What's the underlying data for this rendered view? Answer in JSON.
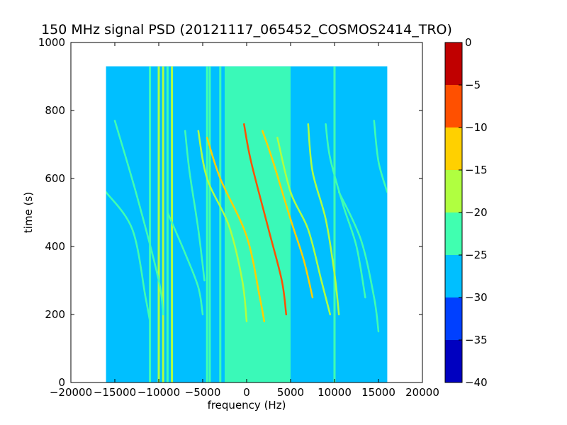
{
  "chart_data": {
    "type": "heatmap",
    "title": "150 MHz signal PSD (20121117_065452_COSMOS2414_TRO)",
    "xlabel": "frequency (Hz)",
    "ylabel": "time (s)",
    "xlim": [
      -20000,
      20000
    ],
    "ylim": [
      0,
      1000
    ],
    "x_ticks": [
      -20000,
      -15000,
      -10000,
      -5000,
      0,
      5000,
      10000,
      15000,
      20000
    ],
    "x_tick_labels": [
      "−20000",
      "−15000",
      "−10000",
      "−5000",
      "0",
      "5000",
      "10000",
      "15000",
      "20000"
    ],
    "y_ticks": [
      0,
      200,
      400,
      600,
      800,
      1000
    ],
    "y_tick_labels": [
      "0",
      "200",
      "400",
      "600",
      "800",
      "1000"
    ],
    "data_extent": {
      "x": [
        -16000,
        16000
      ],
      "y": [
        0,
        930
      ]
    },
    "background_level": -27.5,
    "colorbar": {
      "levels": [
        -40,
        -35,
        -30,
        -25,
        -20,
        -15,
        -10,
        -5,
        0
      ],
      "tick_labels": [
        "−40",
        "−35",
        "−30",
        "−25",
        "−20",
        "−15",
        "−10",
        "−5",
        "0"
      ],
      "colors": [
        "#0000c0",
        "#0040ff",
        "#00bfff",
        "#40ffb0",
        "#b0ff40",
        "#ffd000",
        "#ff5000",
        "#c00000"
      ]
    },
    "central_band": {
      "x_min": -2500,
      "x_max": 5000,
      "level": -22.5
    },
    "vertical_lines": [
      {
        "x": -11000,
        "level": -22.5
      },
      {
        "x": -10000,
        "level": -17.5
      },
      {
        "x": -9500,
        "level": -17.5
      },
      {
        "x": -9000,
        "level": -22.5
      },
      {
        "x": -8500,
        "level": -17.5
      },
      {
        "x": -4500,
        "level": -22.5
      },
      {
        "x": -4200,
        "level": -22.5
      },
      {
        "x": -3000,
        "level": -22.5
      },
      {
        "x": 10000,
        "level": -22.5
      }
    ],
    "tracks": [
      {
        "points": [
          [
            -16000,
            560
          ],
          [
            -13000,
            450
          ],
          [
            -11500,
            250
          ],
          [
            -11000,
            180
          ]
        ],
        "level": -22.5
      },
      {
        "points": [
          [
            -15000,
            770
          ],
          [
            -12500,
            550
          ],
          [
            -10000,
            300
          ],
          [
            -9500,
            200
          ]
        ],
        "level": -22.5
      },
      {
        "points": [
          [
            -9000,
            500
          ],
          [
            -7000,
            380
          ],
          [
            -5500,
            280
          ],
          [
            -5000,
            200
          ]
        ],
        "level": -22.5
      },
      {
        "points": [
          [
            -7000,
            740
          ],
          [
            -6500,
            620
          ],
          [
            -5500,
            450
          ],
          [
            -4800,
            300
          ]
        ],
        "level": -22.5
      },
      {
        "points": [
          [
            -5500,
            740
          ],
          [
            -4500,
            600
          ],
          [
            -2000,
            460
          ],
          [
            -500,
            300
          ],
          [
            0,
            180
          ]
        ],
        "level": -17.5
      },
      {
        "points": [
          [
            -4500,
            720
          ],
          [
            -3000,
            600
          ],
          [
            0,
            430
          ],
          [
            1500,
            250
          ],
          [
            2000,
            180
          ]
        ],
        "level": -12.5
      },
      {
        "points": [
          [
            -300,
            760
          ],
          [
            500,
            650
          ],
          [
            2500,
            450
          ],
          [
            4000,
            300
          ],
          [
            4500,
            200
          ]
        ],
        "level": -7.5
      },
      {
        "points": [
          [
            1800,
            740
          ],
          [
            3000,
            650
          ],
          [
            5000,
            480
          ],
          [
            6500,
            360
          ],
          [
            7500,
            250
          ]
        ],
        "level": -12.5
      },
      {
        "points": [
          [
            3500,
            720
          ],
          [
            5000,
            560
          ],
          [
            7000,
            450
          ],
          [
            8500,
            300
          ],
          [
            9500,
            200
          ]
        ],
        "level": -17.5
      },
      {
        "points": [
          [
            7000,
            760
          ],
          [
            7500,
            620
          ],
          [
            9000,
            480
          ],
          [
            10000,
            320
          ],
          [
            10500,
            200
          ]
        ],
        "level": -17.5
      },
      {
        "points": [
          [
            9000,
            760
          ],
          [
            9500,
            660
          ],
          [
            11000,
            520
          ],
          [
            12500,
            400
          ],
          [
            13500,
            250
          ]
        ],
        "level": -22.5
      },
      {
        "points": [
          [
            10500,
            560
          ],
          [
            13000,
            420
          ],
          [
            14500,
            250
          ],
          [
            15000,
            150
          ]
        ],
        "level": -22.5
      },
      {
        "points": [
          [
            14500,
            770
          ],
          [
            15000,
            650
          ],
          [
            16000,
            560
          ]
        ],
        "level": -22.5
      }
    ]
  }
}
